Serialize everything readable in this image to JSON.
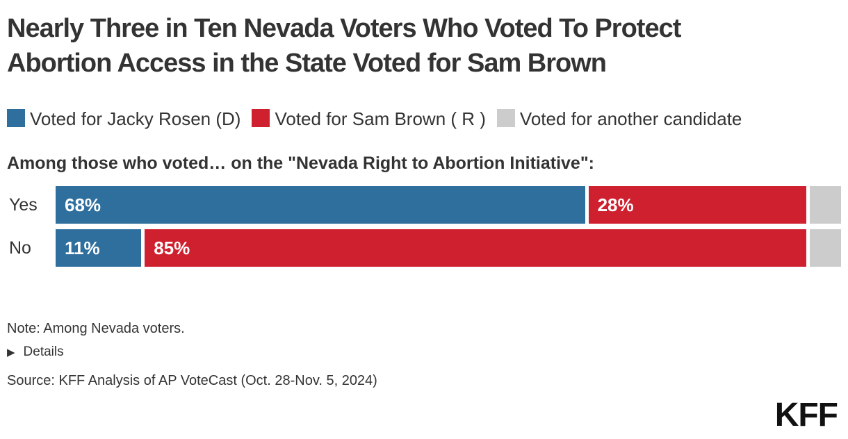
{
  "title": "Nearly Three in Ten Nevada Voters Who Voted To Protect Abortion Access in the State Voted for Sam Brown",
  "subtitle": "Among those who voted… on the \"Nevada Right to Abortion Initiative\":",
  "legend": {
    "items": [
      {
        "label": "Voted for Jacky Rosen (D)",
        "color": "#2f6f9e"
      },
      {
        "label": "Voted for Sam Brown ( R )",
        "color": "#cf202f"
      },
      {
        "label": "Voted for another candidate",
        "color": "#cccccc"
      }
    ]
  },
  "chart_data": {
    "type": "bar",
    "orientation": "horizontal",
    "stacked": true,
    "categories": [
      "Yes",
      "No"
    ],
    "series": [
      {
        "name": "Voted for Jacky Rosen (D)",
        "color": "#2f6f9e",
        "values": [
          68,
          11
        ],
        "show_label": true
      },
      {
        "name": "Voted for Sam Brown ( R )",
        "color": "#cf202f",
        "values": [
          28,
          85
        ],
        "show_label": true
      },
      {
        "name": "Voted for another candidate",
        "color": "#cccccc",
        "values": [
          4,
          4
        ],
        "show_label": false
      }
    ],
    "value_suffix": "%",
    "xlim": [
      0,
      100
    ],
    "grid": false,
    "legend_position": "top",
    "title": "Nearly Three in Ten Nevada Voters Who Voted To Protect Abortion Access in the State Voted for Sam Brown",
    "xlabel": "",
    "ylabel": ""
  },
  "footer": {
    "note": "Note: Among Nevada voters.",
    "details_label": "Details",
    "triangle_icon": "▶",
    "source": "Source: KFF Analysis of AP VoteCast (Oct. 28-Nov. 5, 2024)",
    "logo_text": "KFF"
  }
}
